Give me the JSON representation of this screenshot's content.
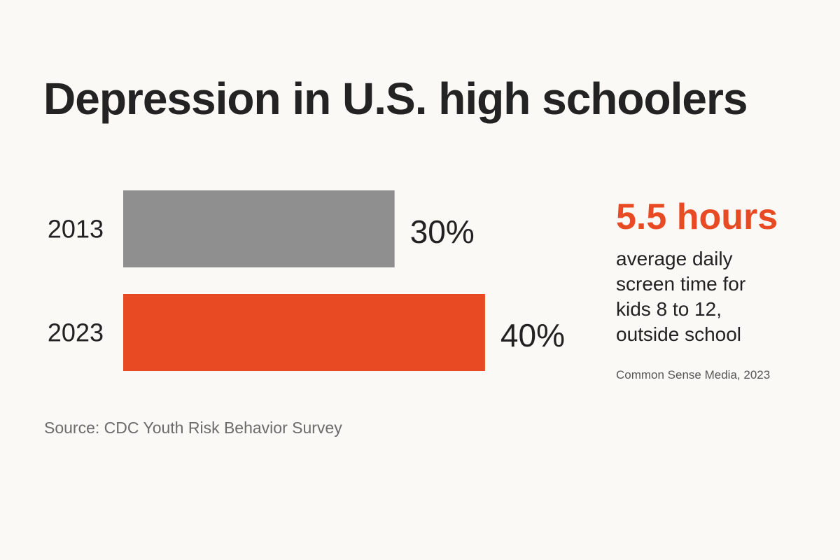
{
  "title": "Depression in U.S. high schoolers",
  "chart_data": {
    "type": "bar",
    "orientation": "horizontal",
    "title": "Depression in U.S. high schoolers",
    "categories": [
      "2013",
      "2023"
    ],
    "values": [
      30,
      40
    ],
    "value_labels": [
      "30%",
      "40%"
    ],
    "unit": "%",
    "xlim": [
      0,
      52
    ],
    "colors": [
      "#8f8f8f",
      "#e84b23"
    ],
    "grid": false,
    "legend": "none"
  },
  "callout": {
    "stat": "5.5 hours",
    "description": "average daily screen time for kids 8 to 12, outside school",
    "source": "Common Sense Media, 2023"
  },
  "source": "Source: CDC Youth Risk Behavior Survey",
  "colors": {
    "background": "#fbf9f5",
    "accent": "#e84b23",
    "neutral_bar": "#8f8f8f",
    "text": "#222222"
  }
}
